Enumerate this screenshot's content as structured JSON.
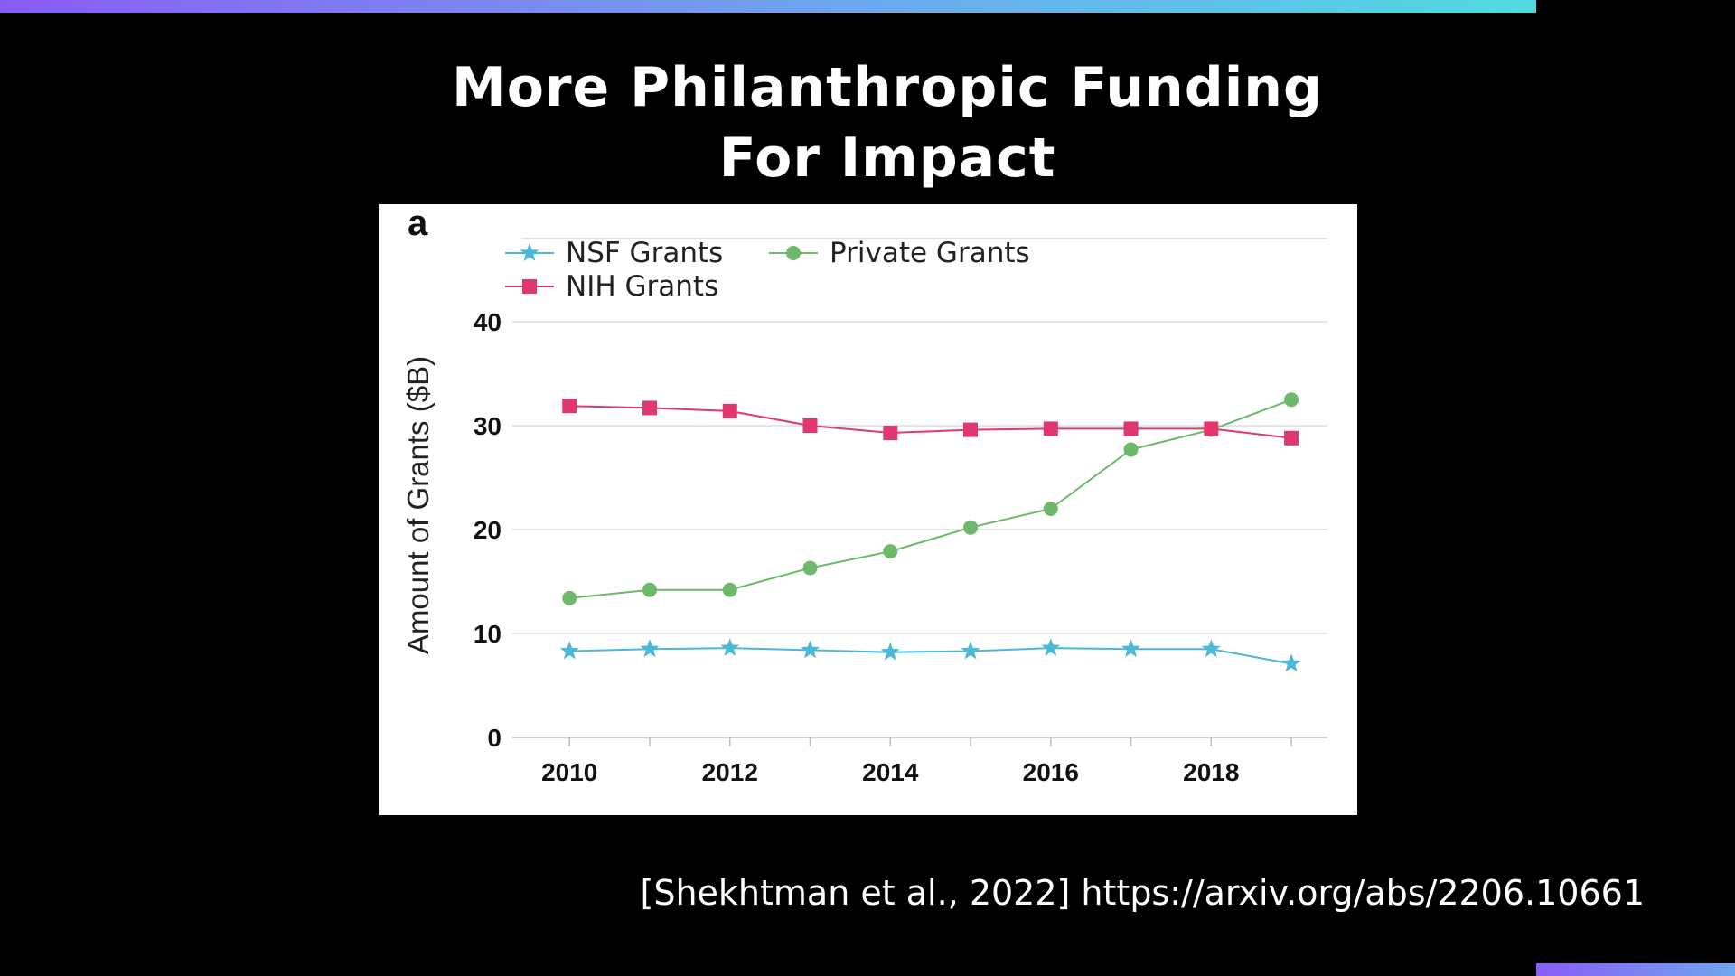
{
  "slide": {
    "title_line1": "More Philanthropic Funding",
    "title_line2": "For Impact",
    "citation": "[Shekhtman et al., 2022] https://arxiv.org/abs/2206.10661"
  },
  "colors": {
    "nsf": "#4cb8d8",
    "nih": "#e0386e",
    "private": "#6db86a",
    "accent_gradient_start": "#8a5cf6",
    "accent_gradient_end": "#4fdbe0"
  },
  "chart_data": {
    "type": "line",
    "panel_label": "a",
    "title": "",
    "xlabel": "",
    "ylabel": "Amount of Grants ($B)",
    "ylim": [
      0,
      48
    ],
    "yticks": [
      0,
      10,
      20,
      30,
      40
    ],
    "xticks": [
      2010,
      2012,
      2014,
      2016,
      2018
    ],
    "xlim": [
      2009.4,
      2019.45
    ],
    "grid": "horizontal",
    "legend_placement": "top-left",
    "x": [
      2010,
      2011,
      2012,
      2013,
      2014,
      2015,
      2016,
      2017,
      2018,
      2019
    ],
    "series": [
      {
        "name": "NSF Grants",
        "marker": "star",
        "color": "#4cb8d8",
        "values": [
          8.3,
          8.5,
          8.6,
          8.4,
          8.2,
          8.3,
          8.6,
          8.5,
          8.5,
          7.1
        ]
      },
      {
        "name": "Private Grants",
        "marker": "circle",
        "color": "#6db86a",
        "values": [
          13.4,
          14.2,
          14.2,
          16.3,
          17.9,
          20.2,
          22.0,
          27.7,
          29.6,
          32.5
        ]
      },
      {
        "name": "NIH Grants",
        "marker": "square",
        "color": "#e0386e",
        "values": [
          31.9,
          31.7,
          31.4,
          30.0,
          29.3,
          29.6,
          29.7,
          29.7,
          29.7,
          28.8
        ]
      }
    ]
  }
}
